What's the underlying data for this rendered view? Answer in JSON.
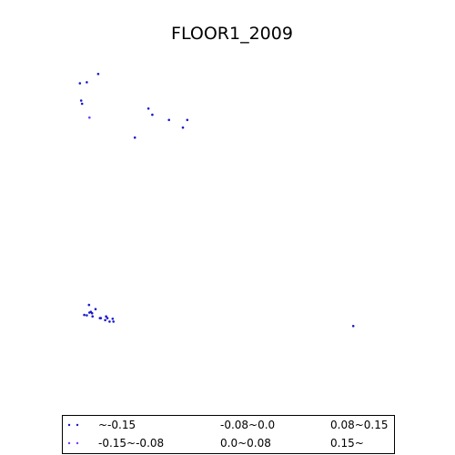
{
  "chart_data": {
    "type": "scatter",
    "title": "FLOOR1_2009",
    "xlabel": "",
    "ylabel": "",
    "xlim": [
      0,
      1
    ],
    "ylim": [
      0,
      1
    ],
    "grid": false,
    "axes_visible": false,
    "legend_placement": "bottom",
    "legend_columns": 3,
    "series": [
      {
        "name": "~-0.15",
        "color": "#1a1acc",
        "points": [
          {
            "x": 0.178,
            "y": 0.92
          },
          {
            "x": 0.204,
            "y": 0.944
          },
          {
            "x": 0.162,
            "y": 0.917
          },
          {
            "x": 0.165,
            "y": 0.867
          },
          {
            "x": 0.167,
            "y": 0.858
          },
          {
            "x": 0.319,
            "y": 0.844
          },
          {
            "x": 0.328,
            "y": 0.826
          },
          {
            "x": 0.366,
            "y": 0.811
          },
          {
            "x": 0.408,
            "y": 0.811
          },
          {
            "x": 0.398,
            "y": 0.789
          },
          {
            "x": 0.288,
            "y": 0.76
          },
          {
            "x": 0.183,
            "y": 0.276
          },
          {
            "x": 0.198,
            "y": 0.264
          },
          {
            "x": 0.187,
            "y": 0.256
          },
          {
            "x": 0.184,
            "y": 0.254
          },
          {
            "x": 0.172,
            "y": 0.247
          },
          {
            "x": 0.191,
            "y": 0.243
          },
          {
            "x": 0.208,
            "y": 0.238
          },
          {
            "x": 0.178,
            "y": 0.246
          },
          {
            "x": 0.19,
            "y": 0.252
          },
          {
            "x": 0.22,
            "y": 0.232
          },
          {
            "x": 0.222,
            "y": 0.243
          },
          {
            "x": 0.225,
            "y": 0.238
          },
          {
            "x": 0.237,
            "y": 0.236
          },
          {
            "x": 0.239,
            "y": 0.228
          },
          {
            "x": 0.23,
            "y": 0.228
          },
          {
            "x": 0.21,
            "y": 0.238
          },
          {
            "x": 0.788,
            "y": 0.215
          }
        ]
      },
      {
        "name": "-0.15~-0.08",
        "color": "#7a3cff",
        "points": [
          {
            "x": 0.184,
            "y": 0.818
          }
        ]
      },
      {
        "name": "-0.08~0.0",
        "color": "#1a1acc",
        "points": []
      },
      {
        "name": "0.0~0.08",
        "color": "#1a1acc",
        "points": []
      },
      {
        "name": "0.08~0.15",
        "color": "#1a1acc",
        "points": []
      },
      {
        "name": "0.15~",
        "color": "#1a1acc",
        "points": []
      }
    ]
  }
}
